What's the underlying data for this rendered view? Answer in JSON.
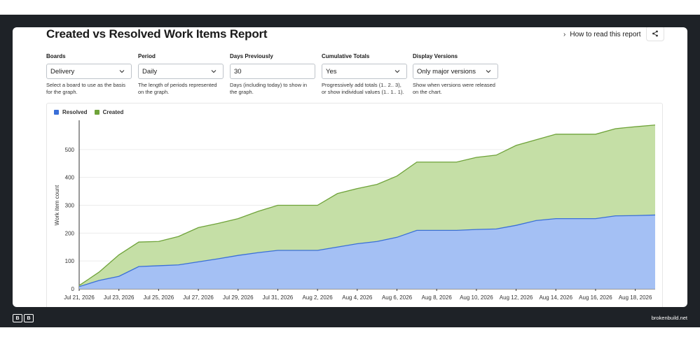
{
  "report": {
    "title": "Created vs Resolved Work Items Report",
    "how_to_read": "How to read this report",
    "share_icon": "share-icon"
  },
  "controls": {
    "boards": {
      "label": "Boards",
      "value": "Delivery",
      "help": "Select a board to use as the basis for the graph."
    },
    "period": {
      "label": "Period",
      "value": "Daily",
      "help": "The length of periods represented on the graph."
    },
    "days": {
      "label": "Days Previously",
      "value": "30",
      "help": "Days (including today) to show in the graph."
    },
    "cumulative": {
      "label": "Cumulative Totals",
      "value": "Yes",
      "help": "Progressively add totals (1.. 2.. 3), or show individual values (1.. 1.. 1)."
    },
    "versions": {
      "label": "Display Versions",
      "value": "Only major versions",
      "help": "Show when versions were released on the chart."
    }
  },
  "chart_data": {
    "type": "area",
    "ylabel": "Work item count",
    "ylim": [
      0,
      600
    ],
    "yticks": [
      0,
      100,
      200,
      300,
      400,
      500
    ],
    "xtick_labels": [
      "Jul 21, 2026",
      "Jul 23, 2026",
      "Jul 25, 2026",
      "Jul 27, 2026",
      "Jul 29, 2026",
      "Jul 31, 2026",
      "Aug 2, 2026",
      "Aug 4, 2026",
      "Aug 6, 2026",
      "Aug 8, 2026",
      "Aug 10, 2026",
      "Aug 12, 2026",
      "Aug 14, 2026",
      "Aug 16, 2026",
      "Aug 18, 2026"
    ],
    "x": [
      "Jul 21",
      "Jul 22",
      "Jul 23",
      "Jul 24",
      "Jul 25",
      "Jul 26",
      "Jul 27",
      "Jul 28",
      "Jul 29",
      "Jul 30",
      "Jul 31",
      "Aug 1",
      "Aug 2",
      "Aug 3",
      "Aug 4",
      "Aug 5",
      "Aug 6",
      "Aug 7",
      "Aug 8",
      "Aug 9",
      "Aug 10",
      "Aug 11",
      "Aug 12",
      "Aug 13",
      "Aug 14",
      "Aug 15",
      "Aug 16",
      "Aug 17",
      "Aug 18",
      "Aug 19"
    ],
    "series": [
      {
        "name": "Resolved",
        "color": "#a4c0f4",
        "line": "#3a6fd8",
        "values": [
          8,
          30,
          45,
          80,
          83,
          86,
          97,
          108,
          120,
          130,
          138,
          138,
          138,
          150,
          162,
          170,
          185,
          210,
          210,
          210,
          213,
          215,
          228,
          245,
          252,
          252,
          252,
          262,
          263,
          265
        ]
      },
      {
        "name": "Created",
        "color": "#c5dfa6",
        "line": "#6fa33a",
        "values": [
          12,
          60,
          122,
          168,
          170,
          188,
          220,
          235,
          252,
          278,
          300,
          300,
          300,
          342,
          360,
          375,
          405,
          455,
          455,
          455,
          472,
          480,
          515,
          535,
          555,
          555,
          555,
          575,
          582,
          588
        ]
      }
    ],
    "legend_position": "top-left",
    "grid": true
  },
  "footer": {
    "brand": "brokenbuild.net",
    "logo_letters": [
      "B",
      "B"
    ]
  }
}
